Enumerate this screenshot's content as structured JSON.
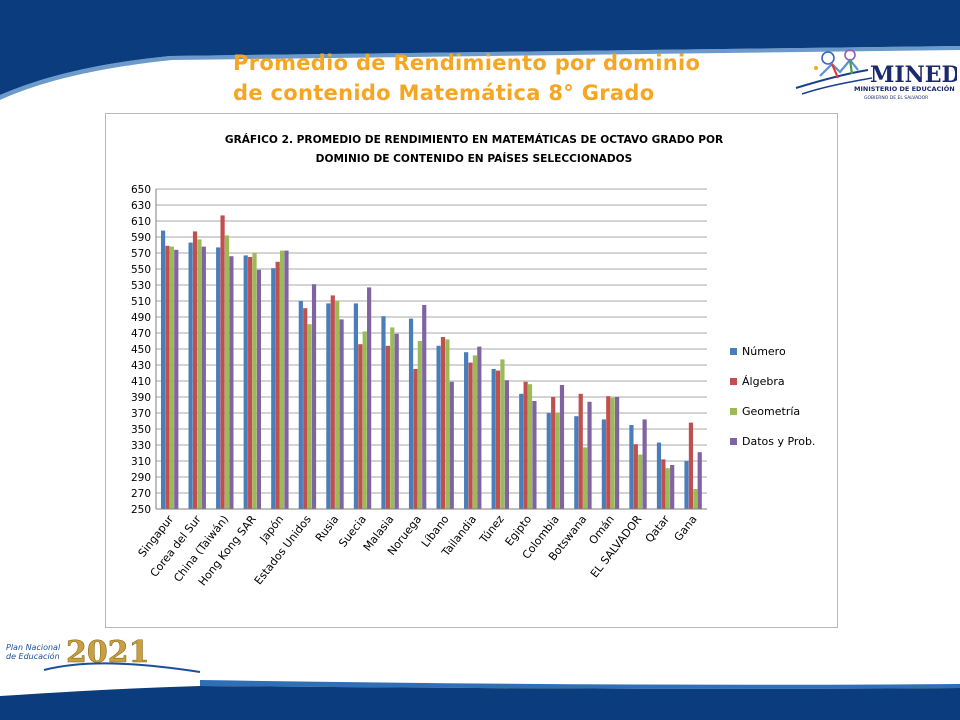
{
  "slide": {
    "title_line1": "Promedio de Rendimiento por dominio",
    "title_line2": "de contenido Matemática 8° Grado"
  },
  "logos": {
    "mined": "MINED",
    "mined_sub": "MINISTERIO DE EDUCACIÓN",
    "mined_sub2": "GOBIERNO DE EL SALVADOR",
    "plan_line1": "Plan Nacional",
    "plan_line2": "de Educación",
    "plan_year": "2021"
  },
  "colors": {
    "accent_title": "#f5a623",
    "band": "#0b3c7d",
    "numero": "#4a7ebb",
    "algebra": "#c0504d",
    "geometria": "#9bbb59",
    "datos": "#8064a2"
  },
  "chart_data": {
    "type": "bar",
    "title_line1": "GRÁFICO 2. PROMEDIO DE RENDIMIENTO EN MATEMÁTICAS DE OCTAVO GRADO POR",
    "title_line2": "DOMINIO DE CONTENIDO EN PAÍSES SELECCIONADOS",
    "xlabel": "",
    "ylabel": "",
    "ylim": [
      250,
      650
    ],
    "ytick_step": 20,
    "grid": true,
    "legend_position": "right",
    "categories": [
      "Singapur",
      "Corea del Sur",
      "China (Taiwán)",
      "Hong Kong SAR",
      "Japón",
      "Estados Unidos",
      "Rusia",
      "Suecia",
      "Malasia",
      "Noruega",
      "Líbano",
      "Tailandia",
      "Túnez",
      "Egipto",
      "Colombia",
      "Botswana",
      "Omán",
      "EL SALVADOR",
      "Qatar",
      "Gana"
    ],
    "series": [
      {
        "name": "Número",
        "color": "#4a7ebb",
        "values": [
          598,
          583,
          577,
          567,
          551,
          510,
          507,
          507,
          491,
          488,
          454,
          446,
          425,
          394,
          370,
          366,
          362,
          355,
          333,
          310
        ]
      },
      {
        "name": "Álgebra",
        "color": "#c0504d",
        "values": [
          579,
          597,
          617,
          565,
          559,
          501,
          517,
          456,
          454,
          425,
          465,
          433,
          423,
          409,
          390,
          394,
          391,
          331,
          312,
          358
        ]
      },
      {
        "name": "Geometría",
        "color": "#9bbb59",
        "values": [
          578,
          587,
          592,
          570,
          573,
          481,
          510,
          472,
          477,
          460,
          462,
          442,
          437,
          406,
          370,
          327,
          389,
          318,
          301,
          275
        ]
      },
      {
        "name": "Datos y Prob.",
        "color": "#8064a2",
        "values": [
          574,
          578,
          566,
          549,
          573,
          531,
          487,
          527,
          469,
          505,
          409,
          453,
          411,
          385,
          405,
          384,
          390,
          362,
          305,
          321
        ]
      }
    ]
  }
}
